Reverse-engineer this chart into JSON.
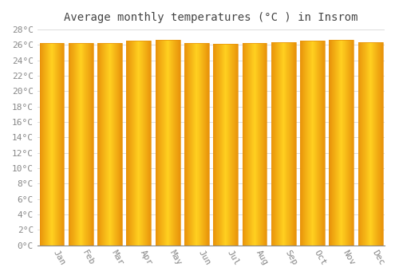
{
  "title": "Average monthly temperatures (°C ) in Insrom",
  "months": [
    "Jan",
    "Feb",
    "Mar",
    "Apr",
    "May",
    "Jun",
    "Jul",
    "Aug",
    "Sep",
    "Oct",
    "Nov",
    "Dec"
  ],
  "values": [
    26.3,
    26.3,
    26.3,
    26.6,
    26.7,
    26.3,
    26.1,
    26.3,
    26.4,
    26.6,
    26.7,
    26.4
  ],
  "ylim": [
    0,
    28
  ],
  "yticks": [
    0,
    2,
    4,
    6,
    8,
    10,
    12,
    14,
    16,
    18,
    20,
    22,
    24,
    26,
    28
  ],
  "bar_color_edge": "#E8920A",
  "bar_color_mid": "#FFD020",
  "bar_color_main": "#FFAA00",
  "background_color": "#FFFFFF",
  "grid_color": "#DDDDDD",
  "title_fontsize": 10,
  "tick_fontsize": 8,
  "title_color": "#444444",
  "tick_color": "#888888",
  "font_family": "monospace",
  "bar_width": 0.85
}
